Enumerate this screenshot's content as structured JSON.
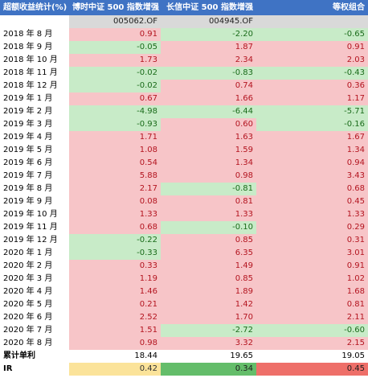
{
  "header": {
    "col0": "超额收益统计(%)",
    "col1": "博时中证 500 指数增强 A",
    "col2": "长信中证 500 指数增强",
    "col3": "等权组合"
  },
  "codes": [
    "",
    "005062.OF",
    "004945.OF",
    ""
  ],
  "rows": [
    {
      "label": "2018 年 8 月",
      "v": [
        "0.91",
        "-2.20",
        "-0.65"
      ]
    },
    {
      "label": "2018 年 9 月",
      "v": [
        "-0.05",
        "1.87",
        "0.91"
      ]
    },
    {
      "label": "2018 年 10 月",
      "v": [
        "1.73",
        "2.34",
        "2.03"
      ]
    },
    {
      "label": "2018 年 11 月",
      "v": [
        "-0.02",
        "-0.83",
        "-0.43"
      ]
    },
    {
      "label": "2018 年 12 月",
      "v": [
        "-0.02",
        "0.74",
        "0.36"
      ]
    },
    {
      "label": "2019 年 1 月",
      "v": [
        "0.67",
        "1.66",
        "1.17"
      ]
    },
    {
      "label": "2019 年 2 月",
      "v": [
        "-4.98",
        "-6.44",
        "-5.71"
      ]
    },
    {
      "label": "2019 年 3 月",
      "v": [
        "-0.93",
        "0.60",
        "-0.16"
      ]
    },
    {
      "label": "2019 年 4 月",
      "v": [
        "1.71",
        "1.63",
        "1.67"
      ]
    },
    {
      "label": "2019 年 5 月",
      "v": [
        "1.08",
        "1.59",
        "1.34"
      ]
    },
    {
      "label": "2019 年 6 月",
      "v": [
        "0.54",
        "1.34",
        "0.94"
      ]
    },
    {
      "label": "2019 年 7 月",
      "v": [
        "5.88",
        "0.98",
        "3.43"
      ]
    },
    {
      "label": "2019 年 8 月",
      "v": [
        "2.17",
        "-0.81",
        "0.68"
      ]
    },
    {
      "label": "2019 年 9 月",
      "v": [
        "0.08",
        "0.81",
        "0.45"
      ]
    },
    {
      "label": "2019 年 10 月",
      "v": [
        "1.33",
        "1.33",
        "1.33"
      ]
    },
    {
      "label": "2019 年 11 月",
      "v": [
        "0.68",
        "-0.10",
        "0.29"
      ]
    },
    {
      "label": "2019 年 12 月",
      "v": [
        "-0.22",
        "0.85",
        "0.31"
      ]
    },
    {
      "label": "2020 年 1 月",
      "v": [
        "-0.33",
        "6.35",
        "3.01"
      ]
    },
    {
      "label": "2020 年 2 月",
      "v": [
        "0.33",
        "1.49",
        "0.91"
      ]
    },
    {
      "label": "2020 年 3 月",
      "v": [
        "1.19",
        "0.85",
        "1.02"
      ]
    },
    {
      "label": "2020 年 4 月",
      "v": [
        "1.46",
        "1.89",
        "1.68"
      ]
    },
    {
      "label": "2020 年 5 月",
      "v": [
        "0.21",
        "1.42",
        "0.81"
      ]
    },
    {
      "label": "2020 年 6 月",
      "v": [
        "2.52",
        "1.70",
        "2.11"
      ]
    },
    {
      "label": "2020 年 7 月",
      "v": [
        "1.51",
        "-2.72",
        "-0.60"
      ]
    },
    {
      "label": "2020 年 8 月",
      "v": [
        "0.98",
        "3.32",
        "2.15"
      ]
    }
  ],
  "summary": {
    "label": "累计单利",
    "v": [
      "18.44",
      "19.65",
      "19.05"
    ]
  },
  "ir": {
    "label": "IR",
    "v": [
      "0.42",
      "0.34",
      "0.45"
    ]
  },
  "colors": {
    "header_bg": "#3f73c4",
    "positive_bg": "#f7c5c8",
    "negative_bg": "#c8ebc8",
    "ir_yellow": "#fbe39a",
    "ir_green": "#64bd6a",
    "ir_red": "#ee6f69"
  }
}
